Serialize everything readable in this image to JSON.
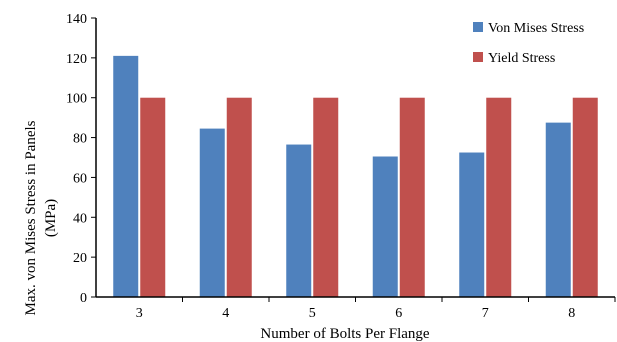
{
  "chart_data": {
    "type": "bar",
    "categories": [
      "3",
      "4",
      "5",
      "6",
      "7",
      "8"
    ],
    "series": [
      {
        "name": "Von Mises Stress",
        "color": "#4f81bd",
        "values": [
          121,
          84.5,
          76.5,
          70.5,
          72.5,
          87.5
        ]
      },
      {
        "name": "Yield Stress",
        "color": "#c0504d",
        "values": [
          100,
          100,
          100,
          100,
          100,
          100
        ]
      }
    ],
    "xlabel": "Number of Bolts Per Flange",
    "ylabel_lines": [
      "Max. von Mises Stress in Panels",
      "(MPa)"
    ],
    "ylim": [
      0,
      140
    ],
    "yticks": [
      0,
      20,
      40,
      60,
      80,
      100,
      120,
      140
    ],
    "ytick_labels": [
      "0",
      "20",
      "40",
      "60",
      "80",
      "100",
      "120",
      "140"
    ],
    "grid": false,
    "legend_position": "top-right"
  }
}
